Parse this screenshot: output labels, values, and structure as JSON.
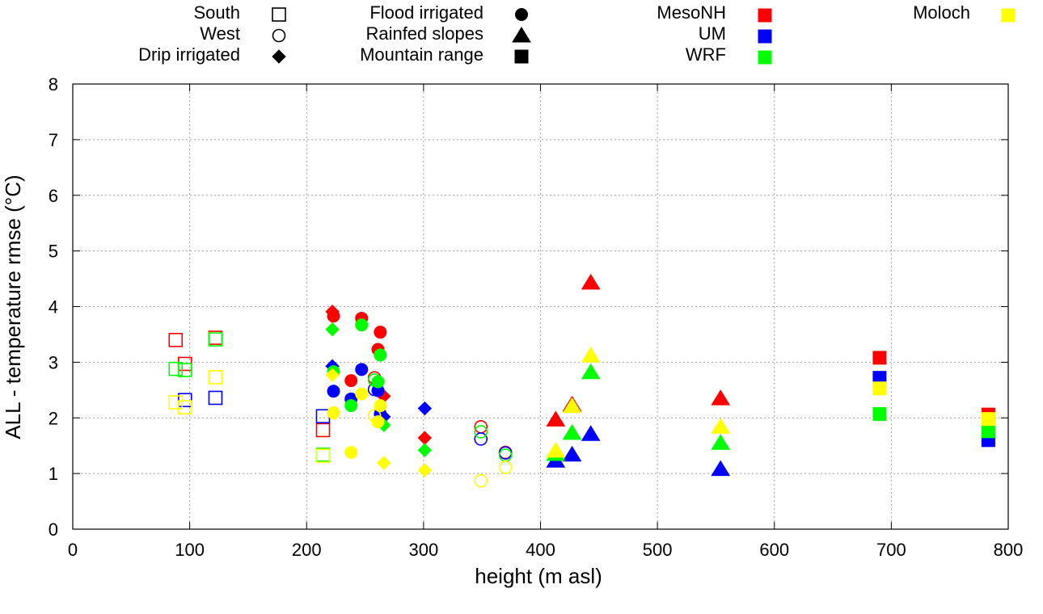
{
  "chart_data": {
    "type": "scatter",
    "xlabel": "height (m asl)",
    "ylabel": "ALL - temperature rmse (°C)",
    "xlim": [
      0,
      800
    ],
    "ylim": [
      0,
      8
    ],
    "xticks": [
      "0",
      "100",
      "200",
      "300",
      "400",
      "500",
      "600",
      "700",
      "800"
    ],
    "yticks": [
      "0",
      "1",
      "2",
      "3",
      "4",
      "5",
      "6",
      "7",
      "8"
    ],
    "grid": true,
    "legend": {
      "shapes": [
        {
          "label": "South",
          "marker": "open-square"
        },
        {
          "label": "West",
          "marker": "open-circle"
        },
        {
          "label": "Drip irrigated",
          "marker": "filled-diamond"
        },
        {
          "label": "Flood irrigated",
          "marker": "filled-circle"
        },
        {
          "label": "Rainfed slopes",
          "marker": "filled-triangle"
        },
        {
          "label": "Mountain range",
          "marker": "filled-square"
        }
      ],
      "models": [
        {
          "label": "MesoNH",
          "color": "#ff0000"
        },
        {
          "label": "UM",
          "color": "#0000ff"
        },
        {
          "label": "WRF",
          "color": "#00ff00"
        },
        {
          "label": "Moloch",
          "color": "#ffff00"
        }
      ]
    },
    "series": [
      {
        "name": "MesoNH",
        "color": "#ff0000",
        "points": [
          {
            "x": 88,
            "y": 3.4,
            "m": "open-square"
          },
          {
            "x": 96,
            "y": 2.97,
            "m": "open-square"
          },
          {
            "x": 122,
            "y": 3.44,
            "m": "open-square"
          },
          {
            "x": 214,
            "y": 1.78,
            "m": "open-square"
          },
          {
            "x": 222,
            "y": 3.91,
            "m": "filled-diamond"
          },
          {
            "x": 223,
            "y": 3.83,
            "m": "filled-circle"
          },
          {
            "x": 238,
            "y": 2.67,
            "m": "filled-circle"
          },
          {
            "x": 247,
            "y": 3.79,
            "m": "filled-circle"
          },
          {
            "x": 258,
            "y": 2.72,
            "m": "open-circle"
          },
          {
            "x": 261,
            "y": 3.23,
            "m": "filled-circle"
          },
          {
            "x": 263,
            "y": 3.54,
            "m": "filled-circle"
          },
          {
            "x": 266,
            "y": 2.39,
            "m": "filled-diamond"
          },
          {
            "x": 301,
            "y": 1.64,
            "m": "filled-diamond"
          },
          {
            "x": 349,
            "y": 1.84,
            "m": "open-circle"
          },
          {
            "x": 370,
            "y": 1.38,
            "m": "open-circle"
          },
          {
            "x": 413,
            "y": 1.97,
            "m": "filled-triangle"
          },
          {
            "x": 427,
            "y": 2.24,
            "m": "filled-triangle"
          },
          {
            "x": 443,
            "y": 4.43,
            "m": "filled-triangle"
          },
          {
            "x": 554,
            "y": 2.35,
            "m": "filled-triangle"
          },
          {
            "x": 690,
            "y": 3.08,
            "m": "filled-square"
          },
          {
            "x": 783,
            "y": 2.06,
            "m": "filled-square"
          }
        ]
      },
      {
        "name": "UM",
        "color": "#0000ff",
        "points": [
          {
            "x": 96,
            "y": 2.32,
            "m": "open-square"
          },
          {
            "x": 122,
            "y": 2.36,
            "m": "open-square"
          },
          {
            "x": 214,
            "y": 2.03,
            "m": "open-square"
          },
          {
            "x": 222,
            "y": 2.93,
            "m": "filled-diamond"
          },
          {
            "x": 223,
            "y": 2.48,
            "m": "filled-circle"
          },
          {
            "x": 238,
            "y": 2.34,
            "m": "filled-circle"
          },
          {
            "x": 247,
            "y": 2.87,
            "m": "filled-circle"
          },
          {
            "x": 258,
            "y": 2.51,
            "m": "open-circle"
          },
          {
            "x": 261,
            "y": 2.49,
            "m": "filled-circle"
          },
          {
            "x": 263,
            "y": 2.07,
            "m": "filled-circle"
          },
          {
            "x": 266,
            "y": 2.02,
            "m": "filled-diamond"
          },
          {
            "x": 301,
            "y": 2.17,
            "m": "filled-diamond"
          },
          {
            "x": 349,
            "y": 1.62,
            "m": "open-circle"
          },
          {
            "x": 370,
            "y": 1.37,
            "m": "open-circle"
          },
          {
            "x": 413,
            "y": 1.23,
            "m": "filled-triangle"
          },
          {
            "x": 427,
            "y": 1.34,
            "m": "filled-triangle"
          },
          {
            "x": 443,
            "y": 1.71,
            "m": "filled-triangle"
          },
          {
            "x": 554,
            "y": 1.08,
            "m": "filled-triangle"
          },
          {
            "x": 690,
            "y": 2.72,
            "m": "filled-square"
          },
          {
            "x": 783,
            "y": 1.6,
            "m": "filled-square"
          }
        ]
      },
      {
        "name": "WRF",
        "color": "#00ff00",
        "points": [
          {
            "x": 88,
            "y": 2.88,
            "m": "open-square"
          },
          {
            "x": 96,
            "y": 2.86,
            "m": "open-square"
          },
          {
            "x": 122,
            "y": 3.41,
            "m": "open-square"
          },
          {
            "x": 214,
            "y": 1.34,
            "m": "open-square"
          },
          {
            "x": 222,
            "y": 3.59,
            "m": "filled-diamond"
          },
          {
            "x": 223,
            "y": 2.83,
            "m": "filled-circle"
          },
          {
            "x": 238,
            "y": 2.22,
            "m": "filled-circle"
          },
          {
            "x": 247,
            "y": 3.67,
            "m": "filled-circle"
          },
          {
            "x": 258,
            "y": 2.68,
            "m": "open-circle"
          },
          {
            "x": 261,
            "y": 2.65,
            "m": "filled-circle"
          },
          {
            "x": 263,
            "y": 3.13,
            "m": "filled-circle"
          },
          {
            "x": 266,
            "y": 1.87,
            "m": "filled-diamond"
          },
          {
            "x": 301,
            "y": 1.42,
            "m": "filled-diamond"
          },
          {
            "x": 349,
            "y": 1.75,
            "m": "open-circle"
          },
          {
            "x": 370,
            "y": 1.33,
            "m": "open-circle"
          },
          {
            "x": 413,
            "y": 1.35,
            "m": "filled-triangle"
          },
          {
            "x": 427,
            "y": 1.73,
            "m": "filled-triangle"
          },
          {
            "x": 443,
            "y": 2.82,
            "m": "filled-triangle"
          },
          {
            "x": 554,
            "y": 1.55,
            "m": "filled-triangle"
          },
          {
            "x": 690,
            "y": 2.07,
            "m": "filled-square"
          },
          {
            "x": 783,
            "y": 1.76,
            "m": "filled-square"
          }
        ]
      },
      {
        "name": "Moloch",
        "color": "#ffff00",
        "points": [
          {
            "x": 88,
            "y": 2.28,
            "m": "open-square"
          },
          {
            "x": 96,
            "y": 2.19,
            "m": "open-square"
          },
          {
            "x": 122,
            "y": 2.73,
            "m": "open-square"
          },
          {
            "x": 214,
            "y": 1.32,
            "m": "open-square"
          },
          {
            "x": 222,
            "y": 2.77,
            "m": "filled-diamond"
          },
          {
            "x": 223,
            "y": 2.09,
            "m": "filled-circle"
          },
          {
            "x": 238,
            "y": 1.38,
            "m": "filled-circle"
          },
          {
            "x": 247,
            "y": 2.43,
            "m": "filled-circle"
          },
          {
            "x": 258,
            "y": 2.04,
            "m": "open-circle"
          },
          {
            "x": 261,
            "y": 1.93,
            "m": "filled-circle"
          },
          {
            "x": 263,
            "y": 2.22,
            "m": "filled-circle"
          },
          {
            "x": 266,
            "y": 1.19,
            "m": "filled-diamond"
          },
          {
            "x": 301,
            "y": 1.06,
            "m": "filled-diamond"
          },
          {
            "x": 349,
            "y": 0.87,
            "m": "open-circle"
          },
          {
            "x": 370,
            "y": 1.11,
            "m": "open-circle"
          },
          {
            "x": 413,
            "y": 1.41,
            "m": "filled-triangle"
          },
          {
            "x": 427,
            "y": 2.21,
            "m": "filled-triangle"
          },
          {
            "x": 443,
            "y": 3.12,
            "m": "filled-triangle"
          },
          {
            "x": 554,
            "y": 1.84,
            "m": "filled-triangle"
          },
          {
            "x": 690,
            "y": 2.53,
            "m": "filled-square"
          },
          {
            "x": 783,
            "y": 1.98,
            "m": "filled-square"
          }
        ]
      }
    ]
  }
}
